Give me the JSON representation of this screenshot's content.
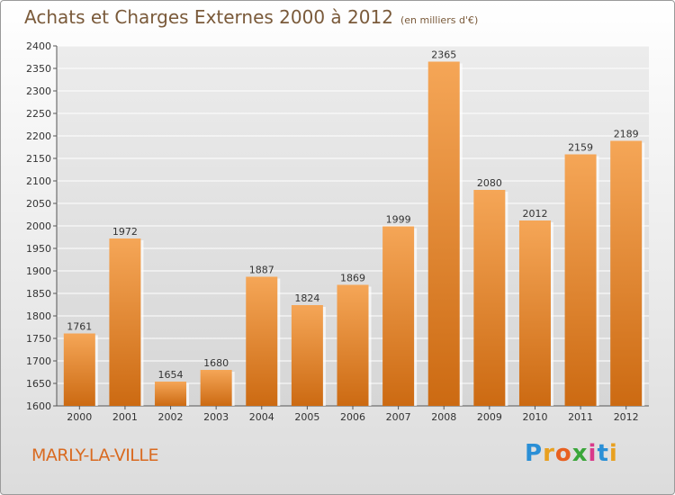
{
  "title": "Achats et Charges Externes 2000 à 2012",
  "unit_note": "(en milliers d'€)",
  "commune": "MARLY-LA-VILLE",
  "logo": {
    "letters": [
      "P",
      "r",
      "o",
      "x",
      "i",
      "t",
      "i"
    ],
    "colors": [
      "#2a8fd6",
      "#e8a020",
      "#e86020",
      "#3aa63a",
      "#d93a8a",
      "#2a8fd6",
      "#e8a020"
    ]
  },
  "colors": {
    "bar_top": "#f5a657",
    "bar_bottom": "#cc6a12",
    "title": "#7a5a3a",
    "commune": "#d96a20"
  },
  "chart_data": {
    "type": "bar",
    "title": "Achats et Charges Externes 2000 à 2012",
    "categories": [
      "2000",
      "2001",
      "2002",
      "2003",
      "2004",
      "2005",
      "2006",
      "2007",
      "2008",
      "2009",
      "2010",
      "2011",
      "2012"
    ],
    "values": [
      1761,
      1972,
      1654,
      1680,
      1887,
      1824,
      1869,
      1999,
      2365,
      2080,
      2012,
      2159,
      2189
    ],
    "ylim": [
      1600,
      2400
    ],
    "yticks": [
      1600,
      1650,
      1700,
      1750,
      1800,
      1850,
      1900,
      1950,
      2000,
      2050,
      2100,
      2150,
      2200,
      2250,
      2300,
      2350,
      2400
    ],
    "grid": true,
    "legend": "none"
  }
}
